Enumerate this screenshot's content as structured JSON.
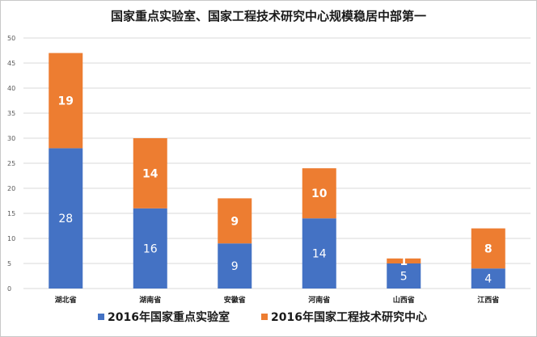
{
  "chart_data": {
    "type": "bar",
    "stacked": true,
    "title": "国家重点实验室、国家工程技术研究中心规模稳居中部第一",
    "categories": [
      "湖北省",
      "湖南省",
      "安徽省",
      "河南省",
      "山西省",
      "江西省"
    ],
    "series": [
      {
        "name": "2016年国家重点实验室",
        "values": [
          28,
          16,
          9,
          14,
          5,
          4
        ],
        "color": "#4472c4"
      },
      {
        "name": "2016年国家工程技术研究中心",
        "values": [
          19,
          14,
          9,
          10,
          1,
          8
        ],
        "color": "#ed7d31"
      }
    ],
    "ylim": [
      0,
      50
    ],
    "y_ticks": [
      "0",
      "5",
      "10",
      "15",
      "20",
      "25",
      "30",
      "35",
      "40",
      "45",
      "50"
    ],
    "grid": true,
    "legend_position": "bottom",
    "xlabel": "",
    "ylabel": ""
  }
}
